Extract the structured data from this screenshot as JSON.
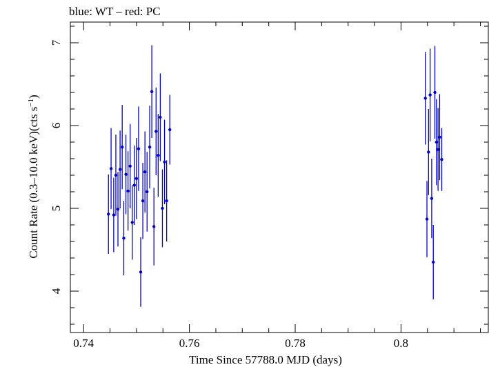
{
  "chart_data": {
    "type": "scatter",
    "title": "blue: WT – red: PC",
    "xlabel": "Time Since 57788.0 MJD (days)",
    "ylabel_main": "Count Rate (0.3–10.0 keV)(cts s",
    "ylabel_sup": "−1",
    "ylabel_tail": ")",
    "xlim": [
      0.7375,
      0.8165
    ],
    "ylim": [
      3.5,
      7.25
    ],
    "x_ticks": [
      0.74,
      0.76,
      0.78,
      0.8
    ],
    "x_tick_labels": [
      "0.74",
      "0.76",
      "0.78",
      "0.8"
    ],
    "y_ticks": [
      4,
      5,
      6,
      7
    ],
    "y_tick_labels": [
      "4",
      "5",
      "6",
      "7"
    ],
    "grid": false,
    "colors": {
      "wt": "#0000cc",
      "axes": "#000000"
    },
    "series": [
      {
        "name": "WT",
        "points": [
          {
            "x": 0.7447,
            "y": 4.93,
            "err": 0.48
          },
          {
            "x": 0.7452,
            "y": 5.48,
            "err": 0.49
          },
          {
            "x": 0.7457,
            "y": 4.92,
            "err": 0.45
          },
          {
            "x": 0.7461,
            "y": 5.4,
            "err": 0.49
          },
          {
            "x": 0.7465,
            "y": 4.99,
            "err": 0.45
          },
          {
            "x": 0.7469,
            "y": 5.47,
            "err": 0.47
          },
          {
            "x": 0.7473,
            "y": 5.74,
            "err": 0.51
          },
          {
            "x": 0.7476,
            "y": 4.64,
            "err": 0.45
          },
          {
            "x": 0.748,
            "y": 5.41,
            "err": 0.48
          },
          {
            "x": 0.7484,
            "y": 5.21,
            "err": 0.48
          },
          {
            "x": 0.7488,
            "y": 5.51,
            "err": 0.51
          },
          {
            "x": 0.7492,
            "y": 4.83,
            "err": 0.45
          },
          {
            "x": 0.7496,
            "y": 5.28,
            "err": 0.48
          },
          {
            "x": 0.75,
            "y": 5.36,
            "err": 0.49
          },
          {
            "x": 0.7504,
            "y": 5.72,
            "err": 0.51
          },
          {
            "x": 0.7508,
            "y": 4.23,
            "err": 0.42
          },
          {
            "x": 0.7512,
            "y": 5.09,
            "err": 0.46
          },
          {
            "x": 0.7516,
            "y": 5.44,
            "err": 0.49
          },
          {
            "x": 0.752,
            "y": 5.2,
            "err": 0.48
          },
          {
            "x": 0.7525,
            "y": 5.74,
            "err": 0.5
          },
          {
            "x": 0.7529,
            "y": 6.41,
            "err": 0.56
          },
          {
            "x": 0.7533,
            "y": 4.78,
            "err": 0.47
          },
          {
            "x": 0.7537,
            "y": 5.93,
            "err": 0.53
          },
          {
            "x": 0.7541,
            "y": 5.64,
            "err": 0.5
          },
          {
            "x": 0.7545,
            "y": 6.1,
            "err": 0.53
          },
          {
            "x": 0.7549,
            "y": 5.0,
            "err": 0.47
          },
          {
            "x": 0.7553,
            "y": 5.56,
            "err": 0.51
          },
          {
            "x": 0.7557,
            "y": 5.09,
            "err": 0.49
          },
          {
            "x": 0.7563,
            "y": 5.95,
            "err": 0.42
          }
        ]
      },
      {
        "name": "",
        "points": [
          {
            "x": 0.8046,
            "y": 6.33,
            "err": 0.56
          },
          {
            "x": 0.8049,
            "y": 4.87,
            "err": 0.46
          },
          {
            "x": 0.8052,
            "y": 5.68,
            "err": 0.52
          },
          {
            "x": 0.8055,
            "y": 6.37,
            "err": 0.56
          },
          {
            "x": 0.8058,
            "y": 5.12,
            "err": 0.48
          },
          {
            "x": 0.8061,
            "y": 4.35,
            "err": 0.45
          },
          {
            "x": 0.8064,
            "y": 6.4,
            "err": 0.56
          },
          {
            "x": 0.8067,
            "y": 5.8,
            "err": 0.52
          },
          {
            "x": 0.807,
            "y": 5.71,
            "err": 0.5
          },
          {
            "x": 0.8073,
            "y": 5.86,
            "err": 0.52
          },
          {
            "x": 0.8077,
            "y": 5.59,
            "err": 0.38
          }
        ]
      }
    ]
  }
}
